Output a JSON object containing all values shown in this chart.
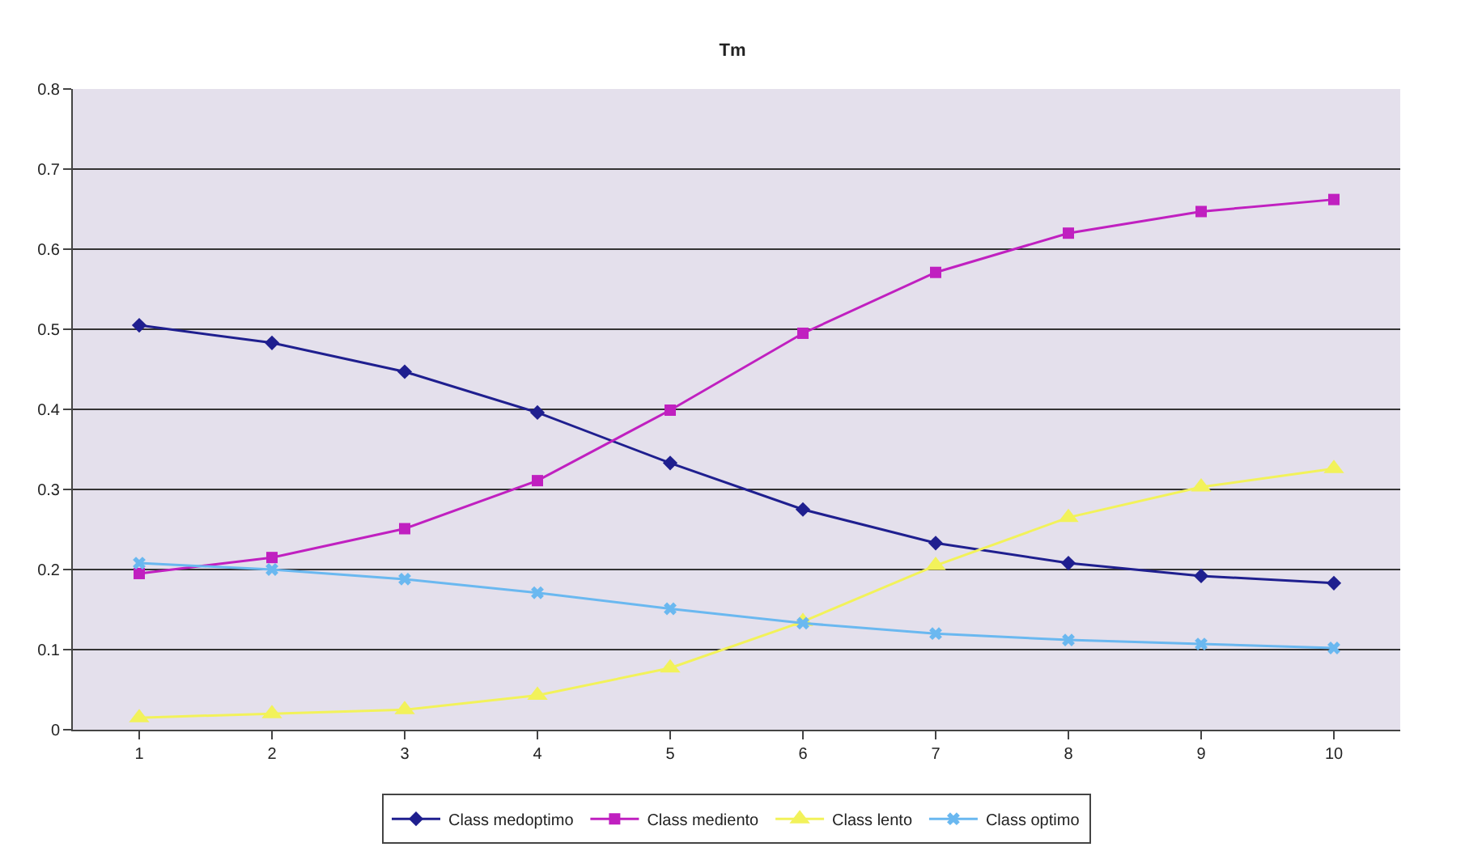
{
  "chart_data": {
    "type": "line",
    "title": "Tm",
    "categories": [
      "1",
      "2",
      "3",
      "4",
      "5",
      "6",
      "7",
      "8",
      "9",
      "10"
    ],
    "series": [
      {
        "name": "Class medoptimo",
        "color": "#1f1f8f",
        "marker": "diamond",
        "values": [
          0.505,
          0.483,
          0.447,
          0.396,
          0.333,
          0.275,
          0.233,
          0.208,
          0.192,
          0.183
        ]
      },
      {
        "name": "Class mediento",
        "color": "#c020c0",
        "marker": "square",
        "values": [
          0.195,
          0.215,
          0.251,
          0.311,
          0.399,
          0.495,
          0.571,
          0.62,
          0.647,
          0.662
        ]
      },
      {
        "name": "Class lento",
        "color": "#f2f25a",
        "marker": "triangle",
        "values": [
          0.015,
          0.02,
          0.025,
          0.043,
          0.077,
          0.135,
          0.205,
          0.265,
          0.303,
          0.326
        ]
      },
      {
        "name": "Class optimo",
        "color": "#6ab8f0",
        "marker": "cross",
        "values": [
          0.208,
          0.2,
          0.188,
          0.171,
          0.151,
          0.133,
          0.12,
          0.112,
          0.107,
          0.102
        ]
      }
    ],
    "ylim": [
      0,
      0.8
    ],
    "yticks": [
      0,
      0.1,
      0.2,
      0.3,
      0.4,
      0.5,
      0.6,
      0.7,
      0.8
    ],
    "grid": "y",
    "legend": "bottom",
    "line_style": "solid"
  }
}
